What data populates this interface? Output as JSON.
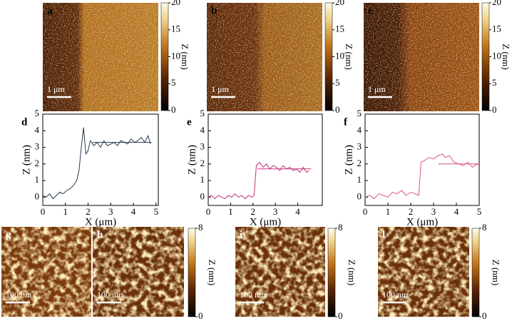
{
  "chart_data": [
    {
      "type": "line",
      "label": "d",
      "xlabel": "X (μm)",
      "ylabel": "Z (nm)",
      "xlim": [
        0,
        5.1
      ],
      "ylim": [
        -0.5,
        5
      ],
      "xticks": [
        0,
        1,
        2,
        3,
        4,
        5
      ],
      "yticks": [
        0,
        1,
        2,
        3,
        4,
        5
      ],
      "series": [
        {
          "color": "#2b3a4f",
          "x": [
            0,
            0.15,
            0.3,
            0.45,
            0.6,
            0.75,
            0.9,
            1.05,
            1.2,
            1.35,
            1.5,
            1.6,
            1.7,
            1.8,
            1.9,
            2.0,
            2.1,
            2.25,
            2.4,
            2.55,
            2.7,
            2.85,
            3.0,
            3.15,
            3.3,
            3.45,
            3.6,
            3.75,
            3.9,
            4.05,
            4.2,
            4.35,
            4.5,
            4.65,
            4.75
          ],
          "values": [
            0.1,
            0.0,
            0.2,
            -0.1,
            0.1,
            0.3,
            0.2,
            0.4,
            0.5,
            0.7,
            1.0,
            1.6,
            3.0,
            4.2,
            2.6,
            2.8,
            3.4,
            3.1,
            3.3,
            3.0,
            3.4,
            3.1,
            3.2,
            3.3,
            3.1,
            3.4,
            3.3,
            3.2,
            3.5,
            3.3,
            3.4,
            3.6,
            3.3,
            3.7,
            3.2
          ]
        },
        {
          "color": "#2b3a4f",
          "x": [
            2.2,
            4.8
          ],
          "values": [
            3.3,
            3.3
          ]
        }
      ]
    },
    {
      "type": "line",
      "label": "e",
      "xlabel": "X (μm)",
      "ylabel": "Z (nm)",
      "xlim": [
        0,
        5.1
      ],
      "ylim": [
        -0.5,
        5
      ],
      "xticks": [
        0,
        1,
        2,
        3,
        4
      ],
      "yticks": [
        0,
        1,
        2,
        3,
        4,
        5
      ],
      "series": [
        {
          "color": "#c2307a",
          "x": [
            0,
            0.15,
            0.3,
            0.45,
            0.6,
            0.75,
            0.9,
            1.05,
            1.2,
            1.35,
            1.5,
            1.65,
            1.8,
            1.95,
            2.05,
            2.15,
            2.3,
            2.45,
            2.6,
            2.75,
            2.9,
            3.05,
            3.2,
            3.35,
            3.5,
            3.65,
            3.8,
            3.95,
            4.1,
            4.25,
            4.4,
            4.5
          ],
          "values": [
            0.0,
            0.1,
            -0.1,
            0.1,
            0.0,
            -0.1,
            0.1,
            0.0,
            0.2,
            0.0,
            0.1,
            -0.1,
            0.1,
            0.0,
            0.1,
            1.9,
            2.1,
            1.8,
            2.0,
            1.7,
            1.9,
            1.8,
            1.6,
            1.9,
            1.7,
            1.8,
            1.6,
            1.7,
            1.5,
            1.8,
            1.5,
            1.6
          ]
        },
        {
          "color": "#c2307a",
          "x": [
            2.2,
            4.6
          ],
          "values": [
            1.7,
            1.7
          ]
        }
      ]
    },
    {
      "type": "line",
      "label": "f",
      "xlabel": "X (μm)",
      "ylabel": "Z (nm)",
      "xlim": [
        0,
        5
      ],
      "ylim": [
        -0.5,
        5
      ],
      "xticks": [
        0,
        1,
        2,
        3,
        4,
        5
      ],
      "yticks": [
        0,
        1,
        2,
        3,
        4,
        5
      ],
      "series": [
        {
          "color": "#d9577f",
          "x": [
            0,
            0.2,
            0.4,
            0.6,
            0.8,
            1.0,
            1.2,
            1.4,
            1.6,
            1.8,
            2.0,
            2.2,
            2.35,
            2.45,
            2.6,
            2.8,
            3.0,
            3.2,
            3.4,
            3.5,
            3.7,
            3.9,
            4.1,
            4.3,
            4.5,
            4.7,
            4.9,
            5.0
          ],
          "values": [
            0.0,
            0.1,
            -0.1,
            0.2,
            0.1,
            0.0,
            0.3,
            0.2,
            0.4,
            0.1,
            0.3,
            0.2,
            0.1,
            2.1,
            2.2,
            2.4,
            2.3,
            2.5,
            2.6,
            2.4,
            2.5,
            2.1,
            2.0,
            1.9,
            2.1,
            1.8,
            2.0,
            1.9
          ]
        },
        {
          "color": "#d9577f",
          "x": [
            3.2,
            5.0
          ],
          "values": [
            2.0,
            2.0
          ]
        }
      ]
    }
  ],
  "images": [
    {
      "label": "a",
      "scale_bar": "1 μm",
      "colorbar": {
        "label": "Z (nm)",
        "lim": [
          0,
          20
        ],
        "ticks": [
          0,
          5,
          10,
          15,
          20
        ]
      }
    },
    {
      "label": "b",
      "scale_bar": "1 μm",
      "colorbar": {
        "label": "Z (nm)",
        "lim": [
          0,
          20
        ],
        "ticks": [
          0,
          5,
          10,
          15,
          20
        ]
      }
    },
    {
      "label": "c",
      "scale_bar": "1 μm",
      "colorbar": {
        "label": "Z (nm)",
        "lim": [
          0,
          20
        ],
        "ticks": [
          0,
          5,
          10,
          15,
          20
        ]
      }
    },
    {
      "label": "g",
      "scale_bar": "100 nm"
    },
    {
      "label": "h",
      "scale_bar": "100 nm",
      "colorbar": {
        "label": "Z (nm)",
        "lim": [
          0,
          8
        ],
        "ticks": [
          0,
          8
        ]
      }
    },
    {
      "label": "i",
      "scale_bar": "100 nm",
      "colorbar": {
        "label": "Z (nm)",
        "lim": [
          0,
          8
        ],
        "ticks": [
          0,
          8
        ]
      }
    },
    {
      "label": "l",
      "scale_bar": "100 nm",
      "colorbar": {
        "label": "Z (nm)",
        "lim": [
          0,
          8
        ],
        "ticks": [
          0,
          8
        ]
      }
    }
  ]
}
